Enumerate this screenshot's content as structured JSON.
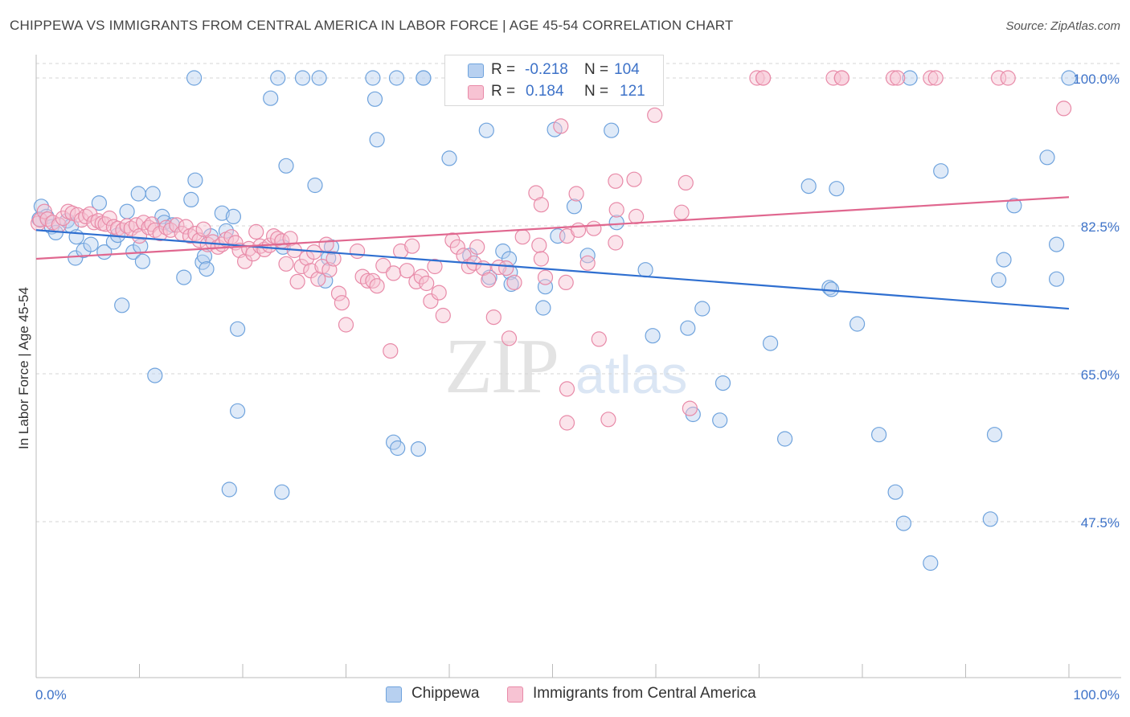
{
  "title": "CHIPPEWA VS IMMIGRANTS FROM CENTRAL AMERICA IN LABOR FORCE | AGE 45-54 CORRELATION CHART",
  "source": "Source: ZipAtlas.com",
  "watermark": {
    "zip": "ZIP",
    "atlas": "atlas"
  },
  "legend": {
    "r_label": "R =",
    "n_label": "N =",
    "series": [
      {
        "name": "Chippewa",
        "r": "-0.218",
        "n": "104",
        "color": "#6fa3dd",
        "fill": "#b7d0f0"
      },
      {
        "name": "Immigrants from Central America",
        "r": "0.184",
        "n": "121",
        "color": "#e88aa8",
        "fill": "#f7c3d3"
      }
    ]
  },
  "chart_data": {
    "type": "scatter",
    "title": "CHIPPEWA VS IMMIGRANTS FROM CENTRAL AMERICA IN LABOR FORCE | AGE 45-54 CORRELATION CHART",
    "xlabel": "",
    "ylabel": "In Labor Force | Age 45-54",
    "xlim": [
      0,
      100
    ],
    "ylim": [
      31.8,
      102.4
    ],
    "x_tick_labels": [
      "0.0%",
      "100.0%"
    ],
    "y_ticks": [
      47.5,
      65.0,
      82.5,
      100.0
    ],
    "y_tick_labels": [
      "47.5%",
      "65.0%",
      "82.5%",
      "100.0%"
    ],
    "grid": true,
    "series": [
      {
        "name": "Chippewa",
        "color": "#6fa3dd",
        "trend": [
          [
            0,
            82.0
          ],
          [
            100,
            72.7
          ]
        ],
        "points": [
          [
            0.3,
            83.3
          ],
          [
            0.5,
            84.8
          ],
          [
            1.0,
            83.6
          ],
          [
            1.5,
            82.4
          ],
          [
            1.9,
            81.7
          ],
          [
            3.0,
            83.1
          ],
          [
            3.4,
            82.5
          ],
          [
            3.8,
            78.7
          ],
          [
            3.9,
            81.2
          ],
          [
            4.6,
            79.6
          ],
          [
            5.3,
            80.3
          ],
          [
            6.1,
            85.2
          ],
          [
            6.6,
            79.4
          ],
          [
            7.5,
            80.6
          ],
          [
            7.9,
            81.4
          ],
          [
            8.3,
            73.1
          ],
          [
            8.8,
            84.2
          ],
          [
            9.4,
            79.4
          ],
          [
            9.9,
            86.3
          ],
          [
            10.1,
            80.1
          ],
          [
            10.3,
            78.3
          ],
          [
            11.3,
            86.3
          ],
          [
            11.5,
            64.8
          ],
          [
            12.2,
            83.6
          ],
          [
            12.4,
            82.9
          ],
          [
            13.2,
            82.6
          ],
          [
            14.3,
            76.4
          ],
          [
            15.0,
            85.6
          ],
          [
            15.3,
            100.0
          ],
          [
            15.4,
            87.9
          ],
          [
            16.1,
            78.2
          ],
          [
            16.3,
            78.9
          ],
          [
            16.5,
            77.4
          ],
          [
            16.9,
            81.3
          ],
          [
            18.0,
            84.0
          ],
          [
            18.4,
            81.9
          ],
          [
            18.7,
            51.3
          ],
          [
            19.1,
            83.6
          ],
          [
            23.4,
            100.0
          ],
          [
            19.5,
            70.3
          ],
          [
            19.5,
            60.6
          ],
          [
            22.7,
            97.6
          ],
          [
            25.8,
            100.0
          ],
          [
            23.8,
            51.0
          ],
          [
            23.9,
            80.0
          ],
          [
            24.2,
            89.6
          ],
          [
            27.4,
            100.0
          ],
          [
            27.0,
            87.3
          ],
          [
            28.0,
            76.0
          ],
          [
            28.3,
            78.7
          ],
          [
            28.6,
            80.0
          ],
          [
            32.6,
            100.0
          ],
          [
            32.8,
            97.5
          ],
          [
            33.0,
            92.7
          ],
          [
            34.6,
            56.9
          ],
          [
            35.0,
            56.2
          ],
          [
            37.0,
            56.1
          ],
          [
            34.9,
            100.0
          ],
          [
            37.5,
            100.0
          ],
          [
            37.5,
            100.0
          ],
          [
            40.0,
            90.5
          ],
          [
            42.0,
            79.0
          ],
          [
            43.6,
            93.8
          ],
          [
            43.9,
            76.4
          ],
          [
            45.2,
            79.5
          ],
          [
            45.8,
            78.6
          ],
          [
            45.9,
            77.0
          ],
          [
            46.0,
            75.6
          ],
          [
            49.1,
            72.8
          ],
          [
            49.3,
            75.3
          ],
          [
            50.0,
            100.0
          ],
          [
            50.2,
            93.9
          ],
          [
            50.5,
            81.3
          ],
          [
            52.1,
            84.8
          ],
          [
            53.4,
            79.0
          ],
          [
            55.7,
            93.8
          ],
          [
            56.2,
            82.9
          ],
          [
            59.0,
            77.3
          ],
          [
            59.7,
            69.5
          ],
          [
            63.1,
            70.4
          ],
          [
            63.6,
            60.2
          ],
          [
            64.5,
            72.7
          ],
          [
            66.2,
            59.5
          ],
          [
            66.5,
            63.9
          ],
          [
            71.1,
            68.6
          ],
          [
            72.5,
            57.3
          ],
          [
            74.8,
            87.2
          ],
          [
            77.5,
            86.9
          ],
          [
            76.8,
            75.2
          ],
          [
            77.0,
            75.0
          ],
          [
            79.5,
            70.9
          ],
          [
            81.6,
            57.8
          ],
          [
            83.2,
            51.0
          ],
          [
            84.0,
            47.3
          ],
          [
            84.6,
            100.0
          ],
          [
            86.6,
            42.6
          ],
          [
            87.6,
            89.0
          ],
          [
            92.4,
            47.8
          ],
          [
            92.8,
            57.8
          ],
          [
            93.2,
            76.1
          ],
          [
            93.7,
            78.5
          ],
          [
            94.7,
            84.9
          ],
          [
            97.9,
            90.6
          ],
          [
            98.8,
            80.3
          ],
          [
            98.8,
            76.2
          ],
          [
            100.0,
            100.0
          ]
        ]
      },
      {
        "name": "Immigrants from Central America",
        "color": "#e88aa8",
        "trend": [
          [
            0,
            78.6
          ],
          [
            100,
            85.9
          ]
        ],
        "points": [
          [
            0.2,
            82.8
          ],
          [
            0.4,
            83.2
          ],
          [
            0.8,
            84.2
          ],
          [
            1.1,
            83.3
          ],
          [
            1.6,
            82.9
          ],
          [
            2.2,
            82.6
          ],
          [
            2.6,
            83.4
          ],
          [
            3.1,
            84.2
          ],
          [
            3.5,
            84.0
          ],
          [
            4.0,
            83.8
          ],
          [
            4.4,
            83.2
          ],
          [
            4.8,
            83.6
          ],
          [
            5.2,
            83.9
          ],
          [
            5.6,
            82.9
          ],
          [
            6.0,
            83.1
          ],
          [
            6.4,
            82.8
          ],
          [
            6.7,
            82.7
          ],
          [
            7.1,
            83.4
          ],
          [
            7.5,
            82.4
          ],
          [
            7.9,
            82.2
          ],
          [
            8.4,
            82.0
          ],
          [
            8.8,
            82.5
          ],
          [
            9.2,
            82.2
          ],
          [
            9.7,
            82.6
          ],
          [
            10.0,
            81.3
          ],
          [
            10.4,
            82.9
          ],
          [
            10.9,
            82.3
          ],
          [
            11.2,
            82.7
          ],
          [
            11.5,
            82.0
          ],
          [
            12.0,
            81.6
          ],
          [
            12.6,
            82.3
          ],
          [
            13.0,
            82.0
          ],
          [
            13.6,
            82.6
          ],
          [
            14.1,
            81.6
          ],
          [
            14.5,
            82.4
          ],
          [
            14.9,
            81.3
          ],
          [
            15.4,
            81.6
          ],
          [
            15.8,
            80.8
          ],
          [
            16.2,
            82.1
          ],
          [
            16.6,
            80.3
          ],
          [
            17.1,
            80.6
          ],
          [
            17.6,
            80.0
          ],
          [
            18.0,
            80.3
          ],
          [
            18.4,
            80.9
          ],
          [
            18.9,
            81.2
          ],
          [
            19.3,
            80.5
          ],
          [
            19.7,
            79.6
          ],
          [
            20.2,
            78.3
          ],
          [
            20.6,
            79.8
          ],
          [
            21.0,
            79.2
          ],
          [
            21.3,
            81.8
          ],
          [
            21.7,
            80.1
          ],
          [
            22.1,
            79.7
          ],
          [
            22.6,
            80.2
          ],
          [
            23.0,
            81.3
          ],
          [
            23.4,
            81.0
          ],
          [
            23.8,
            80.7
          ],
          [
            24.2,
            78.0
          ],
          [
            24.6,
            81.0
          ],
          [
            25.0,
            79.6
          ],
          [
            25.3,
            75.9
          ],
          [
            25.7,
            77.7
          ],
          [
            26.2,
            78.7
          ],
          [
            26.6,
            77.2
          ],
          [
            26.9,
            79.4
          ],
          [
            27.3,
            76.2
          ],
          [
            27.7,
            77.7
          ],
          [
            28.1,
            80.3
          ],
          [
            28.4,
            77.3
          ],
          [
            28.8,
            78.6
          ],
          [
            29.3,
            74.5
          ],
          [
            29.6,
            73.4
          ],
          [
            30.0,
            70.8
          ],
          [
            31.1,
            79.5
          ],
          [
            31.6,
            76.5
          ],
          [
            32.1,
            76.0
          ],
          [
            32.6,
            76.0
          ],
          [
            33.0,
            75.4
          ],
          [
            33.6,
            77.8
          ],
          [
            34.3,
            67.7
          ],
          [
            34.6,
            76.9
          ],
          [
            35.3,
            79.5
          ],
          [
            35.9,
            77.2
          ],
          [
            36.4,
            80.1
          ],
          [
            36.8,
            75.9
          ],
          [
            37.3,
            76.5
          ],
          [
            37.8,
            75.7
          ],
          [
            38.2,
            73.6
          ],
          [
            38.6,
            77.7
          ],
          [
            39.0,
            74.6
          ],
          [
            39.4,
            71.9
          ],
          [
            40.3,
            80.8
          ],
          [
            40.8,
            80.0
          ],
          [
            41.4,
            79.0
          ],
          [
            41.9,
            77.7
          ],
          [
            42.4,
            78.1
          ],
          [
            42.7,
            80.0
          ],
          [
            43.3,
            77.5
          ],
          [
            43.8,
            76.1
          ],
          [
            44.3,
            71.7
          ],
          [
            44.8,
            77.6
          ],
          [
            45.5,
            77.5
          ],
          [
            45.8,
            69.2
          ],
          [
            46.3,
            75.8
          ],
          [
            47.1,
            81.2
          ],
          [
            48.7,
            80.2
          ],
          [
            48.9,
            78.6
          ],
          [
            49.3,
            76.4
          ],
          [
            48.4,
            86.4
          ],
          [
            48.9,
            85.0
          ],
          [
            51.3,
            75.8
          ],
          [
            51.4,
            59.2
          ],
          [
            51.4,
            63.2
          ],
          [
            50.8,
            94.3
          ],
          [
            51.4,
            81.3
          ],
          [
            52.3,
            86.3
          ],
          [
            53.4,
            78.1
          ],
          [
            52.5,
            82.0
          ],
          [
            54.0,
            82.2
          ],
          [
            54.5,
            69.1
          ],
          [
            55.4,
            59.6
          ],
          [
            56.1,
            87.8
          ],
          [
            56.1,
            80.5
          ],
          [
            56.2,
            84.4
          ],
          [
            57.9,
            88.0
          ],
          [
            58.1,
            83.6
          ],
          [
            59.9,
            95.6
          ],
          [
            62.5,
            84.1
          ],
          [
            62.9,
            87.6
          ],
          [
            63.3,
            60.9
          ],
          [
            69.8,
            100.0
          ],
          [
            70.4,
            100.0
          ],
          [
            70.4,
            100.0
          ],
          [
            77.2,
            100.0
          ],
          [
            78.0,
            100.0
          ],
          [
            78.0,
            100.0
          ],
          [
            83.0,
            100.0
          ],
          [
            83.4,
            100.0
          ],
          [
            86.6,
            100.0
          ],
          [
            87.1,
            100.0
          ],
          [
            93.2,
            100.0
          ],
          [
            94.1,
            100.0
          ],
          [
            99.5,
            96.4
          ]
        ]
      }
    ]
  }
}
